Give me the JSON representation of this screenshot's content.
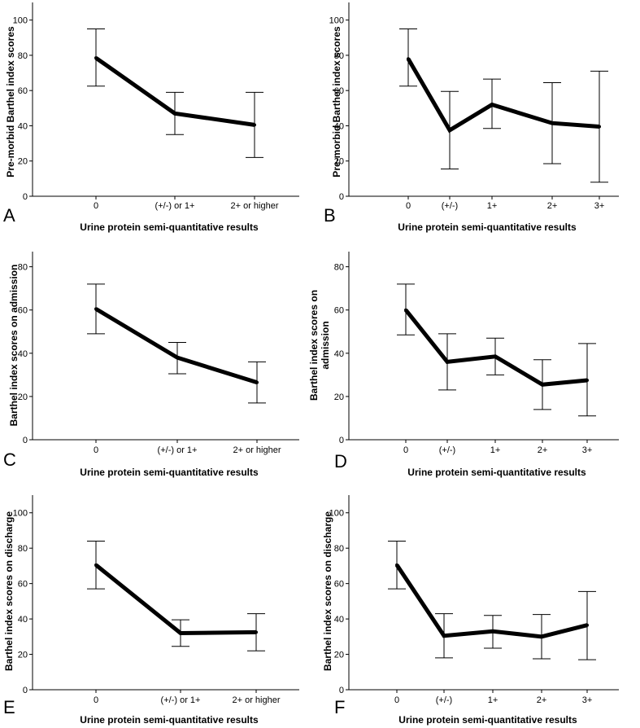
{
  "chart_data": [
    {
      "panel": "A",
      "type": "line",
      "errorbars": true,
      "categories": [
        "0",
        "(+/-) or 1+",
        "2+ or higher"
      ],
      "values": [
        78.5,
        47,
        40.5
      ],
      "error_low": [
        62.5,
        35,
        22
      ],
      "error_high": [
        95,
        59,
        59
      ],
      "ylim": [
        0,
        110
      ],
      "yticks": [
        0,
        20,
        40,
        60,
        80,
        100
      ],
      "xlabel": "Urine protein semi-quantitative results",
      "ylabel": [
        "Pre-morbid Barthel index scores"
      ]
    },
    {
      "panel": "B",
      "type": "line",
      "errorbars": true,
      "categories": [
        "0",
        "(+/-)",
        "1+",
        "2+",
        "3+"
      ],
      "values": [
        78,
        37.5,
        52,
        41.5,
        39.5
      ],
      "error_low": [
        62.5,
        15.5,
        38.5,
        18.5,
        8
      ],
      "error_high": [
        95,
        59.5,
        66.5,
        64.5,
        71
      ],
      "ylim": [
        0,
        110
      ],
      "yticks": [
        0,
        20,
        40,
        60,
        80,
        100
      ],
      "xlabel": "Urine protein semi-quantitative results",
      "ylabel": [
        "Pre-morbid Barthel index scores"
      ]
    },
    {
      "panel": "C",
      "type": "line",
      "errorbars": true,
      "categories": [
        "0",
        "(+/-) or 1+",
        "2+ or higher"
      ],
      "values": [
        60.5,
        38,
        26.5
      ],
      "error_low": [
        49,
        30.5,
        17
      ],
      "error_high": [
        72,
        45,
        36
      ],
      "ylim": [
        0,
        87
      ],
      "yticks": [
        0,
        20,
        40,
        60,
        80
      ],
      "xlabel": "Urine protein semi-quantitative results",
      "ylabel": [
        "Barthel index scores on admission"
      ]
    },
    {
      "panel": "D",
      "type": "line",
      "errorbars": true,
      "categories": [
        "0",
        "(+/-)",
        "1+",
        "2+",
        "3+"
      ],
      "values": [
        60,
        36,
        38.5,
        25.5,
        27.5
      ],
      "error_low": [
        48.5,
        23,
        30,
        14,
        11
      ],
      "error_high": [
        72,
        49,
        47,
        37,
        44.5
      ],
      "ylim": [
        0,
        87
      ],
      "yticks": [
        0,
        20,
        40,
        60,
        80
      ],
      "xlabel": "Urine protein semi-quantitative results",
      "ylabel": [
        "Barthel index scores on",
        "admission"
      ]
    },
    {
      "panel": "E",
      "type": "line",
      "errorbars": true,
      "categories": [
        "0",
        "(+/-) or 1+",
        "2+ or higher"
      ],
      "values": [
        70.5,
        32,
        32.5
      ],
      "error_low": [
        57,
        24.5,
        22
      ],
      "error_high": [
        84,
        39.5,
        43
      ],
      "ylim": [
        0,
        110
      ],
      "yticks": [
        0,
        20,
        40,
        60,
        80,
        100
      ],
      "xlabel": "Urine protein semi-quantitative results",
      "ylabel": [
        "Barthel index scores on discharge"
      ]
    },
    {
      "panel": "F",
      "type": "line",
      "errorbars": true,
      "categories": [
        "0",
        "(+/-)",
        "1+",
        "2+",
        "3+"
      ],
      "values": [
        70.5,
        30.5,
        33,
        30,
        36.5
      ],
      "error_low": [
        57,
        18,
        23.5,
        17.5,
        17
      ],
      "error_high": [
        84,
        43,
        42,
        42.5,
        55.5
      ],
      "ylim": [
        0,
        110
      ],
      "yticks": [
        0,
        20,
        40,
        60,
        80,
        100
      ],
      "xlabel": "Urine protein semi-quantitative results",
      "ylabel": [
        "Barthel index scores on discharge"
      ]
    }
  ]
}
